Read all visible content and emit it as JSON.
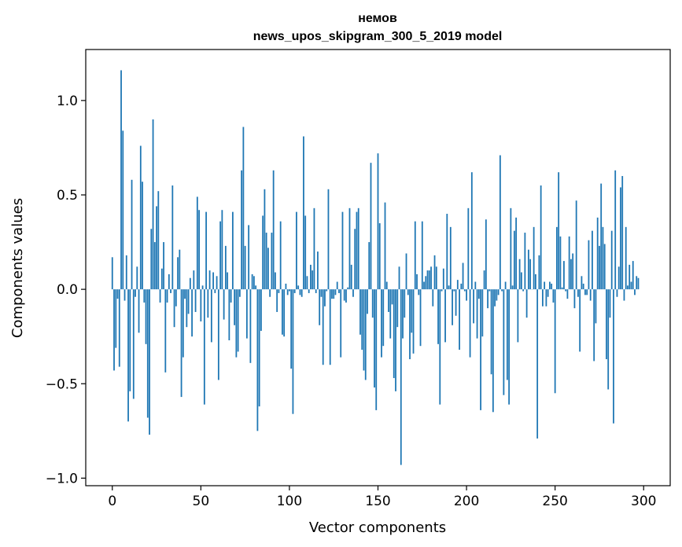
{
  "chart_data": {
    "type": "bar",
    "title": "немов",
    "subtitle": "news_upos_skipgram_300_5_2019 model",
    "xlabel": "Vector components",
    "ylabel": "Components values",
    "xlim": [
      -15,
      315
    ],
    "ylim": [
      -1.04,
      1.27
    ],
    "xticks": [
      0,
      50,
      100,
      150,
      200,
      250,
      300
    ],
    "xtick_labels": [
      "0",
      "50",
      "100",
      "150",
      "200",
      "250",
      "300"
    ],
    "yticks": [
      -1.0,
      -0.5,
      0.0,
      0.5,
      1.0
    ],
    "ytick_labels": [
      "−1.0",
      "−0.5",
      "0.0",
      "0.5",
      "1.0"
    ],
    "grid": false,
    "bar_color": "#1f77b4",
    "values": [
      0.17,
      -0.43,
      -0.31,
      -0.05,
      -0.41,
      1.16,
      0.84,
      -0.06,
      0.18,
      -0.7,
      -0.54,
      0.58,
      -0.58,
      -0.04,
      0.12,
      -0.23,
      0.76,
      0.57,
      -0.07,
      -0.29,
      -0.68,
      -0.77,
      0.32,
      0.9,
      0.25,
      0.44,
      0.52,
      -0.07,
      0.11,
      0.25,
      -0.44,
      -0.07,
      0.08,
      -0.02,
      0.55,
      -0.2,
      -0.09,
      0.17,
      0.21,
      -0.57,
      -0.36,
      -0.05,
      -0.2,
      -0.13,
      0.06,
      -0.25,
      0.1,
      -0.12,
      0.49,
      0.42,
      -0.17,
      0.02,
      -0.61,
      0.41,
      -0.15,
      0.1,
      -0.28,
      0.09,
      -0.02,
      0.07,
      -0.48,
      0.36,
      0.42,
      -0.16,
      0.23,
      0.09,
      -0.27,
      -0.07,
      0.41,
      -0.19,
      -0.36,
      -0.33,
      -0.04,
      0.63,
      0.86,
      0.23,
      -0.26,
      0.34,
      -0.39,
      0.08,
      0.07,
      0.02,
      -0.75,
      -0.62,
      -0.22,
      0.39,
      0.53,
      0.3,
      0.22,
      -0.04,
      0.3,
      0.63,
      0.09,
      -0.12,
      -0.02,
      0.36,
      -0.24,
      -0.25,
      0.03,
      -0.03,
      -0.01,
      -0.42,
      -0.66,
      -0.02,
      0.41,
      0.02,
      -0.03,
      -0.04,
      0.81,
      0.39,
      0.07,
      -0.02,
      0.13,
      0.1,
      0.43,
      -0.02,
      0.2,
      -0.19,
      -0.04,
      -0.4,
      -0.09,
      -0.01,
      0.53,
      -0.4,
      -0.05,
      -0.05,
      -0.03,
      0.04,
      -0.02,
      -0.36,
      0.41,
      -0.06,
      -0.07,
      0.01,
      0.43,
      0.13,
      -0.04,
      0.32,
      0.41,
      0.43,
      -0.24,
      -0.32,
      -0.43,
      -0.48,
      -0.13,
      0.25,
      0.67,
      -0.15,
      -0.52,
      -0.64,
      0.72,
      0.35,
      -0.36,
      -0.3,
      0.46,
      0.04,
      -0.12,
      -0.26,
      -0.08,
      -0.47,
      -0.54,
      -0.2,
      0.12,
      -0.93,
      -0.26,
      -0.15,
      0.19,
      -0.03,
      -0.37,
      -0.23,
      -0.34,
      0.36,
      0.08,
      -0.03,
      -0.3,
      0.36,
      0.04,
      0.07,
      0.1,
      0.1,
      0.12,
      -0.09,
      0.18,
      0.12,
      -0.29,
      -0.61,
      -0.01,
      0.11,
      -0.28,
      0.4,
      0.02,
      0.33,
      -0.19,
      -0.01,
      -0.14,
      0.05,
      -0.32,
      0.03,
      0.14,
      -0.01,
      -0.06,
      0.43,
      -0.36,
      0.62,
      -0.18,
      0.04,
      -0.26,
      -0.05,
      -0.64,
      -0.25,
      0.1,
      0.37,
      -0.1,
      -0.01,
      -0.45,
      -0.65,
      -0.09,
      -0.06,
      -0.03,
      0.71,
      -0.01,
      -0.56,
      0.04,
      -0.48,
      -0.61,
      0.43,
      0.02,
      0.31,
      0.38,
      -0.28,
      0.16,
      0.09,
      -0.01,
      0.3,
      -0.15,
      0.21,
      0.16,
      0.0,
      0.33,
      0.08,
      -0.79,
      0.18,
      0.55,
      -0.09,
      0.04,
      -0.09,
      -0.04,
      0.04,
      0.03,
      -0.07,
      -0.55,
      0.33,
      0.62,
      0.28,
      0.01,
      0.15,
      -0.01,
      -0.05,
      0.28,
      0.16,
      0.19,
      -0.1,
      0.47,
      -0.04,
      -0.33,
      0.07,
      0.03,
      -0.03,
      -0.03,
      0.26,
      -0.06,
      0.31,
      -0.38,
      -0.18,
      0.38,
      0.23,
      0.56,
      0.33,
      0.24,
      -0.37,
      -0.53,
      -0.15,
      0.31,
      -0.71,
      0.63,
      -0.04,
      0.12,
      0.54,
      0.6,
      -0.06,
      0.33,
      0.02,
      0.13,
      0.04,
      0.15,
      -0.03,
      0.07,
      0.06
    ]
  }
}
